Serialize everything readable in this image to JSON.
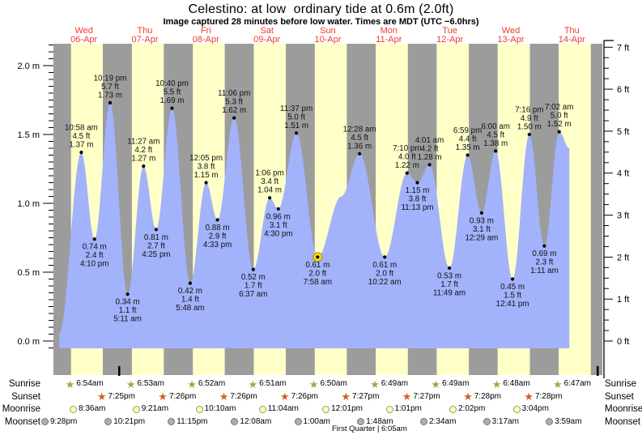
{
  "title": "Celestino: at low  ordinary tide at 0.6m (2.0ft)",
  "subtitle": "Image captured 28 minutes before low water. Times are MDT (UTC −6.0hrs)",
  "days": [
    {
      "name": "Wed",
      "date": "06-Apr"
    },
    {
      "name": "Thu",
      "date": "07-Apr"
    },
    {
      "name": "Fri",
      "date": "08-Apr"
    },
    {
      "name": "Sat",
      "date": "09-Apr"
    },
    {
      "name": "Sun",
      "date": "10-Apr"
    },
    {
      "name": "Mon",
      "date": "11-Apr"
    },
    {
      "name": "Tue",
      "date": "12-Apr"
    },
    {
      "name": "Wed",
      "date": "13-Apr"
    },
    {
      "name": "Thu",
      "date": "14-Apr"
    }
  ],
  "chart_data": {
    "type": "area",
    "title": "Celestino: at low  ordinary tide at 0.6m (2.0ft)",
    "ylabel_left": "meters",
    "ylabel_right": "feet",
    "left_axis_labels": [
      "2.0 m",
      "1.5 m",
      "1.0 m",
      "0.5 m",
      "0.0 m"
    ],
    "right_axis_labels": [
      "7 ft",
      "6 ft",
      "5 ft",
      "4 ft",
      "3 ft",
      "2 ft",
      "1 ft",
      "0 ft"
    ],
    "ylim_m": [
      0.0,
      2.0
    ],
    "tide_events": [
      {
        "day": 0,
        "time": "10:58 am",
        "height_m": 1.37,
        "height_ft": 4.5,
        "type": "high"
      },
      {
        "day": 0,
        "time": "4:10 pm",
        "height_m": 0.74,
        "height_ft": 2.4,
        "type": "low"
      },
      {
        "day": 0,
        "time": "10:19 pm",
        "height_m": 1.73,
        "height_ft": 5.7,
        "type": "high"
      },
      {
        "day": 1,
        "time": "5:11 am",
        "height_m": 0.34,
        "height_ft": 1.1,
        "type": "low"
      },
      {
        "day": 1,
        "time": "11:27 am",
        "height_m": 1.27,
        "height_ft": 4.2,
        "type": "high"
      },
      {
        "day": 1,
        "time": "4:25 pm",
        "height_m": 0.81,
        "height_ft": 2.7,
        "type": "low"
      },
      {
        "day": 1,
        "time": "10:40 pm",
        "height_m": 1.69,
        "height_ft": 5.5,
        "type": "high"
      },
      {
        "day": 2,
        "time": "5:48 am",
        "height_m": 0.42,
        "height_ft": 1.4,
        "type": "low"
      },
      {
        "day": 2,
        "time": "12:05 pm",
        "height_m": 1.15,
        "height_ft": 3.8,
        "type": "high"
      },
      {
        "day": 2,
        "time": "4:33 pm",
        "height_m": 0.88,
        "height_ft": 2.9,
        "type": "low"
      },
      {
        "day": 2,
        "time": "11:06 pm",
        "height_m": 1.62,
        "height_ft": 5.3,
        "type": "high"
      },
      {
        "day": 3,
        "time": "6:37 am",
        "height_m": 0.52,
        "height_ft": 1.7,
        "type": "low"
      },
      {
        "day": 3,
        "time": "1:06 pm",
        "height_m": 1.04,
        "height_ft": 3.4,
        "type": "high"
      },
      {
        "day": 3,
        "time": "4:30 pm",
        "height_m": 0.96,
        "height_ft": 3.1,
        "type": "low"
      },
      {
        "day": 3,
        "time": "11:37 pm",
        "height_m": 1.51,
        "height_ft": 5.0,
        "type": "high"
      },
      {
        "day": 4,
        "time": "7:58 am",
        "height_m": 0.61,
        "height_ft": 2.0,
        "type": "low",
        "current": true
      },
      {
        "day": 5,
        "time": "12:28 am",
        "height_m": 1.36,
        "height_ft": 4.5,
        "type": "high"
      },
      {
        "day": 5,
        "time": "10:22 am",
        "height_m": 0.61,
        "height_ft": 2.0,
        "type": "low"
      },
      {
        "day": 5,
        "time": "7:10 pm",
        "height_m": 1.22,
        "height_ft": 4.0,
        "type": "high"
      },
      {
        "day": 5,
        "time": "11:13 pm",
        "height_m": 1.15,
        "height_ft": 3.8,
        "type": "low"
      },
      {
        "day": 6,
        "time": "4:01 am",
        "height_m": 1.28,
        "height_ft": 4.2,
        "type": "high"
      },
      {
        "day": 6,
        "time": "11:49 am",
        "height_m": 0.53,
        "height_ft": 1.7,
        "type": "low"
      },
      {
        "day": 6,
        "time": "6:59 pm",
        "height_m": 1.35,
        "height_ft": 4.4,
        "type": "high"
      },
      {
        "day": 7,
        "time": "12:29 am",
        "height_m": 0.93,
        "height_ft": 3.1,
        "type": "low"
      },
      {
        "day": 7,
        "time": "6:00 am",
        "height_m": 1.38,
        "height_ft": 4.5,
        "type": "high"
      },
      {
        "day": 7,
        "time": "12:41 pm",
        "height_m": 0.45,
        "height_ft": 1.5,
        "type": "low"
      },
      {
        "day": 7,
        "time": "7:16 pm",
        "height_m": 1.5,
        "height_ft": 4.9,
        "type": "high"
      },
      {
        "day": 8,
        "time": "1:11 am",
        "height_m": 0.69,
        "height_ft": 2.3,
        "type": "low"
      },
      {
        "day": 8,
        "time": "7:02 am",
        "height_m": 1.52,
        "height_ft": 5.0,
        "type": "high"
      }
    ]
  },
  "sun_moon": [
    {
      "id": "sunrise",
      "label": "Sunrise",
      "icon": "sunrise-star-icon",
      "times": [
        "6:54am",
        "6:53am",
        "6:52am",
        "6:51am",
        "6:50am",
        "6:49am",
        "6:49am",
        "6:48am",
        "6:47am"
      ]
    },
    {
      "id": "sunset",
      "label": "Sunset",
      "icon": "sunset-star-icon",
      "times": [
        "7:25pm",
        "7:26pm",
        "7:26pm",
        "7:26pm",
        "7:27pm",
        "7:27pm",
        "7:28pm",
        "7:28pm"
      ]
    },
    {
      "id": "moonrise",
      "label": "Moonrise",
      "icon": "moonrise-circle-icon",
      "times": [
        "8:36am",
        "9:21am",
        "10:10am",
        "11:04am",
        "12:01pm",
        "1:01pm",
        "2:02pm",
        "3:04pm"
      ]
    },
    {
      "id": "moonset",
      "label": "Moonset",
      "icon": "moonset-circle-icon",
      "times": [
        "9:28pm",
        "10:21pm",
        "11:15pm",
        "12:08am",
        "1:00am",
        "1:48am",
        "2:34am",
        "3:17am",
        "3:59am"
      ]
    }
  ],
  "moon_phase": "First Quarter | 6:05am",
  "colors": {
    "day_band": "#ffffc8",
    "night_band": "#9c9c9c",
    "tide_fill": "#a2b2fb",
    "date_text": "#ee3b30",
    "annotation_text": "#111111",
    "current_marker": "#ffdd00",
    "sunrise_icon": "#b0a23c",
    "sunset_icon": "#cf5f2a",
    "moonrise_icon": "#ffffb0",
    "moonset_icon": "#b0b0a8"
  }
}
